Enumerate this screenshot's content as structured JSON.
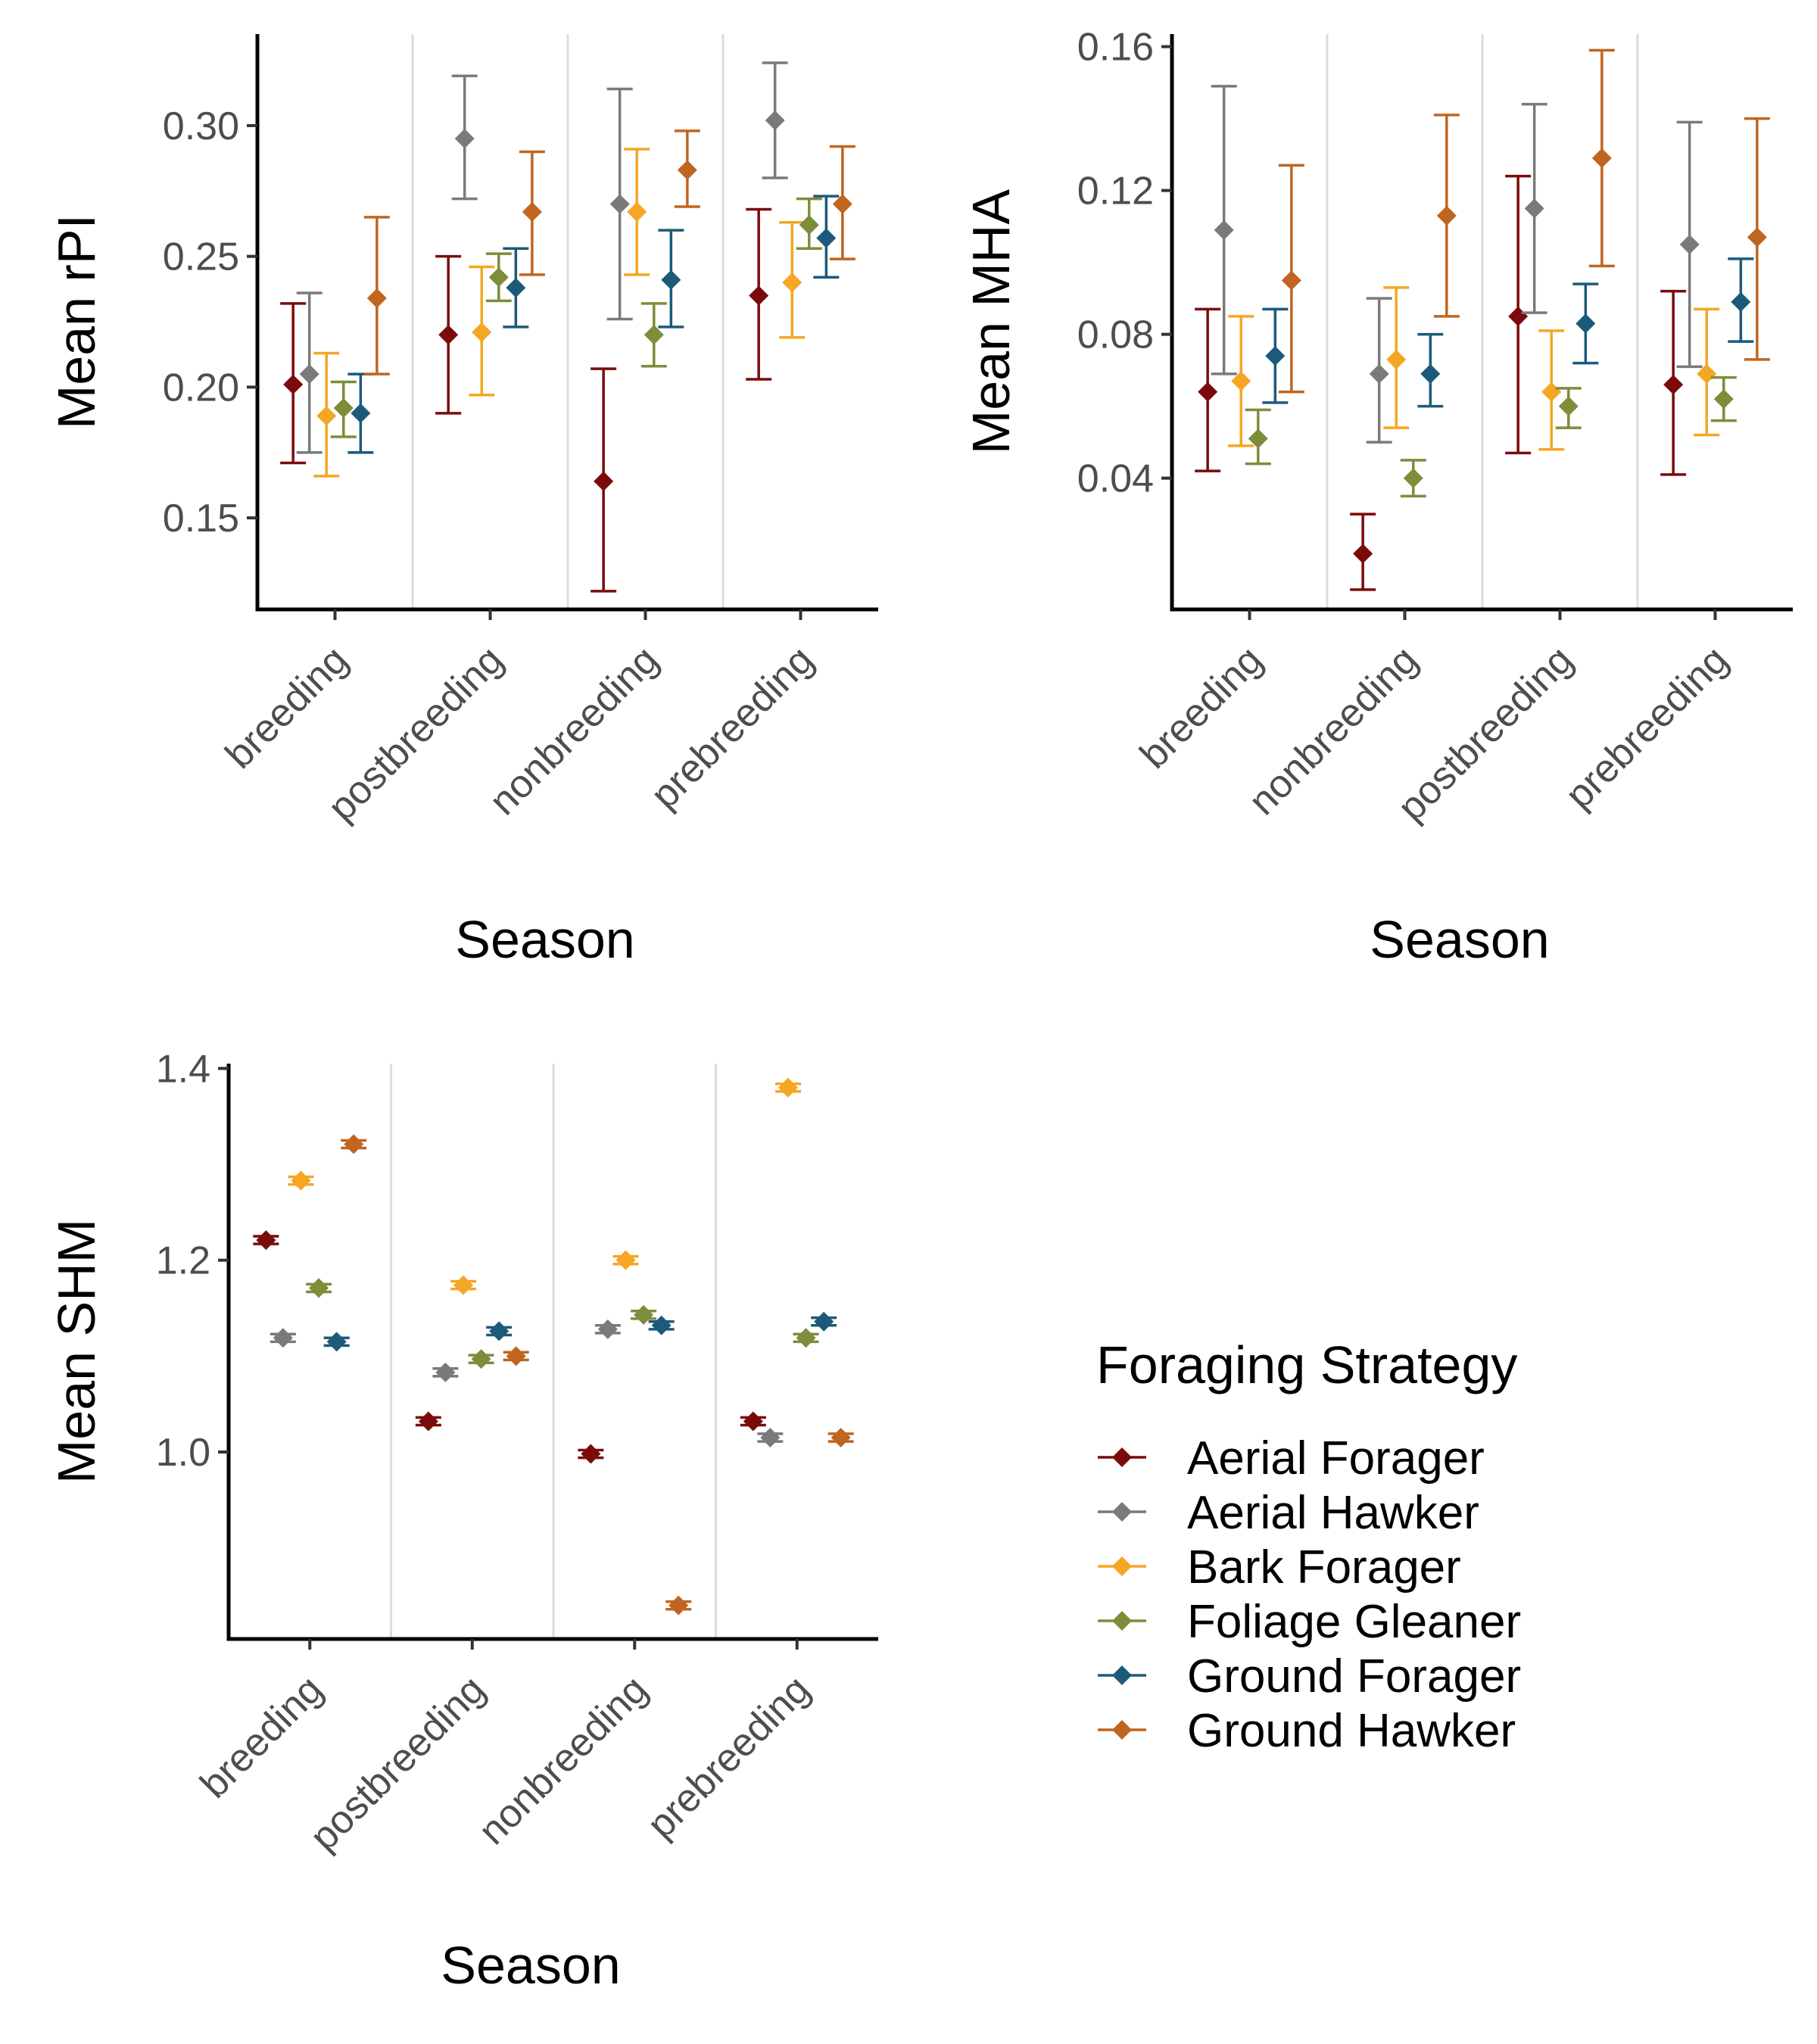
{
  "colors": {
    "Aerial Forager": "#7b0b0b",
    "Aerial Hawker": "#7a7a7a",
    "Bark Forager": "#f5a623",
    "Foliage Gleaner": "#7f8c3a",
    "Ground Forager": "#1c5a7a",
    "Ground Hawker": "#c0651f"
  },
  "legend": {
    "title": "Foraging Strategy",
    "items": [
      "Aerial Forager",
      "Aerial Hawker",
      "Bark Forager",
      "Foliage Gleaner",
      "Ground Forager",
      "Ground Hawker"
    ]
  },
  "chart_data": [
    {
      "type": "scatter",
      "id": "rpi",
      "ylabel": "Mean rPI",
      "xlabel": "Season",
      "categories": [
        "breeding",
        "postbreeding",
        "nonbreeding",
        "prebreeding"
      ],
      "ylim": [
        0.115,
        0.335
      ],
      "yticks": [
        0.15,
        0.2,
        0.25,
        0.3
      ],
      "ytick_labels": [
        "0.15",
        "0.20",
        "0.25",
        "0.30"
      ],
      "grid": "vertical separators between seasons",
      "series": [
        {
          "name": "Aerial Forager",
          "values": [
            0.201,
            0.22,
            0.164,
            0.235
          ],
          "lower": [
            0.171,
            0.19,
            0.122,
            0.203
          ],
          "upper": [
            0.232,
            0.25,
            0.207,
            0.268
          ]
        },
        {
          "name": "Aerial Hawker",
          "values": [
            0.205,
            0.295,
            0.27,
            0.302
          ],
          "lower": [
            0.175,
            0.272,
            0.226,
            0.28
          ],
          "upper": [
            0.236,
            0.319,
            0.314,
            0.324
          ]
        },
        {
          "name": "Bark Forager",
          "values": [
            0.189,
            0.221,
            0.267,
            0.24
          ],
          "lower": [
            0.166,
            0.197,
            0.243,
            0.219
          ],
          "upper": [
            0.213,
            0.246,
            0.291,
            0.263
          ]
        },
        {
          "name": "Foliage Gleaner",
          "values": [
            0.192,
            0.242,
            0.22,
            0.262
          ],
          "lower": [
            0.181,
            0.233,
            0.208,
            0.253
          ],
          "upper": [
            0.202,
            0.251,
            0.232,
            0.272
          ]
        },
        {
          "name": "Ground Forager",
          "values": [
            0.19,
            0.238,
            0.241,
            0.257
          ],
          "lower": [
            0.175,
            0.223,
            0.223,
            0.242
          ],
          "upper": [
            0.205,
            0.253,
            0.26,
            0.273
          ]
        },
        {
          "name": "Ground Hawker",
          "values": [
            0.234,
            0.267,
            0.283,
            0.27
          ],
          "lower": [
            0.205,
            0.243,
            0.269,
            0.249
          ],
          "upper": [
            0.265,
            0.29,
            0.298,
            0.292
          ]
        }
      ]
    },
    {
      "type": "scatter",
      "id": "mha",
      "ylabel": "Mean MHA",
      "xlabel": "Season",
      "categories": [
        "breeding",
        "nonbreeding",
        "postbreeding",
        "prebreeding"
      ],
      "ylim": [
        0.0035,
        0.1635
      ],
      "yticks": [
        0.04,
        0.08,
        0.12,
        0.16
      ],
      "ytick_labels": [
        "0.04",
        "0.08",
        "0.12",
        "0.16"
      ],
      "grid": "vertical separators between seasons",
      "series": [
        {
          "name": "Aerial Forager",
          "values": [
            0.064,
            0.019,
            0.085,
            0.066
          ],
          "lower": [
            0.042,
            0.009,
            0.047,
            0.041
          ],
          "upper": [
            0.087,
            0.03,
            0.124,
            0.092
          ]
        },
        {
          "name": "Aerial Hawker",
          "values": [
            0.109,
            0.069,
            0.115,
            0.105
          ],
          "lower": [
            0.069,
            0.05,
            0.086,
            0.071
          ],
          "upper": [
            0.149,
            0.09,
            0.144,
            0.139
          ]
        },
        {
          "name": "Bark Forager",
          "values": [
            0.067,
            0.073,
            0.064,
            0.069
          ],
          "lower": [
            0.049,
            0.054,
            0.048,
            0.052
          ],
          "upper": [
            0.085,
            0.093,
            0.081,
            0.087
          ]
        },
        {
          "name": "Foliage Gleaner",
          "values": [
            0.051,
            0.04,
            0.06,
            0.062
          ],
          "lower": [
            0.044,
            0.035,
            0.054,
            0.056
          ],
          "upper": [
            0.059,
            0.045,
            0.065,
            0.068
          ]
        },
        {
          "name": "Ground Forager",
          "values": [
            0.074,
            0.069,
            0.083,
            0.089
          ],
          "lower": [
            0.061,
            0.06,
            0.072,
            0.078
          ],
          "upper": [
            0.087,
            0.08,
            0.094,
            0.101
          ]
        },
        {
          "name": "Ground Hawker",
          "values": [
            0.095,
            0.113,
            0.129,
            0.107
          ],
          "lower": [
            0.064,
            0.085,
            0.099,
            0.073
          ],
          "upper": [
            0.127,
            0.141,
            0.159,
            0.14
          ]
        }
      ]
    },
    {
      "type": "scatter",
      "id": "shm",
      "ylabel": "Mean SHM",
      "xlabel": "Season",
      "categories": [
        "breeding",
        "postbreeding",
        "nonbreeding",
        "prebreeding"
      ],
      "ylim": [
        0.805,
        1.405
      ],
      "yticks": [
        1.0,
        1.2,
        1.4
      ],
      "ytick_labels": [
        "1.0",
        "1.2",
        "1.4"
      ],
      "grid": "vertical separators between seasons",
      "series": [
        {
          "name": "Aerial Forager",
          "values": [
            1.221,
            1.032,
            0.998,
            1.032
          ],
          "lower": [
            1.217,
            1.028,
            0.994,
            1.028
          ],
          "upper": [
            1.225,
            1.036,
            1.002,
            1.036
          ]
        },
        {
          "name": "Aerial Hawker",
          "values": [
            1.119,
            1.083,
            1.128,
            1.015
          ],
          "lower": [
            1.115,
            1.079,
            1.124,
            1.011
          ],
          "upper": [
            1.123,
            1.087,
            1.132,
            1.019
          ]
        },
        {
          "name": "Bark Forager",
          "values": [
            1.283,
            1.174,
            1.2,
            1.38
          ],
          "lower": [
            1.279,
            1.17,
            1.196,
            1.376
          ],
          "upper": [
            1.287,
            1.178,
            1.204,
            1.384
          ]
        },
        {
          "name": "Foliage Gleaner",
          "values": [
            1.171,
            1.097,
            1.143,
            1.119
          ],
          "lower": [
            1.167,
            1.093,
            1.139,
            1.115
          ],
          "upper": [
            1.175,
            1.101,
            1.147,
            1.123
          ]
        },
        {
          "name": "Ground Forager",
          "values": [
            1.115,
            1.126,
            1.132,
            1.136
          ],
          "lower": [
            1.111,
            1.122,
            1.128,
            1.132
          ],
          "upper": [
            1.119,
            1.13,
            1.136,
            1.14
          ]
        },
        {
          "name": "Ground Hawker",
          "values": [
            1.321,
            1.1,
            0.84,
            1.015
          ],
          "lower": [
            1.317,
            1.096,
            0.836,
            1.011
          ],
          "upper": [
            1.325,
            1.104,
            0.844,
            1.019
          ]
        }
      ]
    }
  ]
}
